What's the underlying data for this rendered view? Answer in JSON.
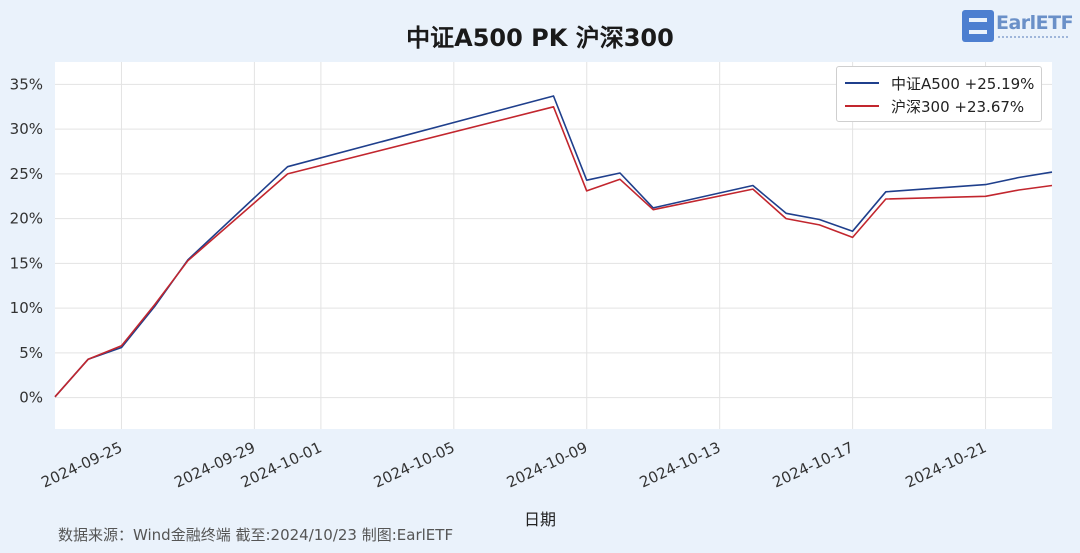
{
  "title": "中证A500 PK 沪深300",
  "logo_text": "EarlETF",
  "source_note": "数据来源：Wind金融终端 截至:2024/10/23 制图:EarlETF",
  "chart_data": {
    "type": "line",
    "title": "中证A500 PK 沪深300",
    "xlabel": "日期",
    "ylabel": "",
    "x_range": [
      "2024-09-23",
      "2024-10-23"
    ],
    "ylim": [
      -3.5,
      37.5
    ],
    "y_ticks": [
      0,
      5,
      10,
      15,
      20,
      25,
      30,
      35
    ],
    "y_tick_labels": [
      "0%",
      "5%",
      "10%",
      "15%",
      "20%",
      "25%",
      "30%",
      "35%"
    ],
    "x_ticks": [
      "2024-09-25",
      "2024-09-29",
      "2024-10-01",
      "2024-10-05",
      "2024-10-09",
      "2024-10-13",
      "2024-10-17",
      "2024-10-21"
    ],
    "grid": true,
    "legend_position": "top-right",
    "series": [
      {
        "name": "中证A500",
        "legend_label": "中证A500  +25.19%",
        "color": "#1f3f8c",
        "x": [
          "2024-09-23",
          "2024-09-24",
          "2024-09-25",
          "2024-09-26",
          "2024-09-27",
          "2024-09-30",
          "2024-10-08",
          "2024-10-09",
          "2024-10-10",
          "2024-10-11",
          "2024-10-14",
          "2024-10-15",
          "2024-10-16",
          "2024-10-17",
          "2024-10-18",
          "2024-10-21",
          "2024-10-22",
          "2024-10-23"
        ],
        "values": [
          0.1,
          4.3,
          5.6,
          10.2,
          15.4,
          25.8,
          33.7,
          24.3,
          25.1,
          21.2,
          23.7,
          20.6,
          19.9,
          18.6,
          23.0,
          23.8,
          24.6,
          25.2
        ]
      },
      {
        "name": "沪深300",
        "legend_label": "沪深300  +23.67%",
        "color": "#c2262e",
        "x": [
          "2024-09-23",
          "2024-09-24",
          "2024-09-25",
          "2024-09-26",
          "2024-09-27",
          "2024-09-30",
          "2024-10-08",
          "2024-10-09",
          "2024-10-10",
          "2024-10-11",
          "2024-10-14",
          "2024-10-15",
          "2024-10-16",
          "2024-10-17",
          "2024-10-18",
          "2024-10-21",
          "2024-10-22",
          "2024-10-23"
        ],
        "values": [
          0.1,
          4.3,
          5.8,
          10.4,
          15.3,
          25.0,
          32.5,
          23.1,
          24.4,
          21.0,
          23.3,
          20.0,
          19.3,
          17.9,
          22.2,
          22.5,
          23.2,
          23.7
        ]
      }
    ]
  }
}
